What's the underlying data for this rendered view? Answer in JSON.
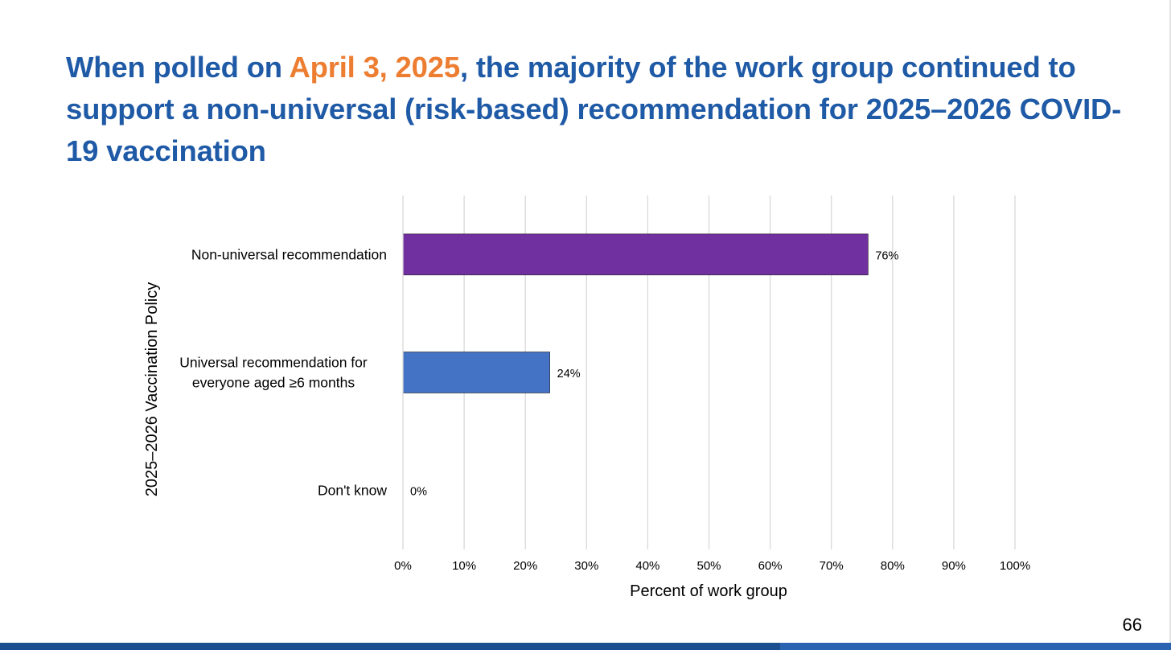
{
  "slide": {
    "title_parts": [
      "When polled on ",
      "April 3, 2025",
      ", the majority of the work group continued to support a non-universal (risk-based) recommendation for 2025–2026 COVID-19 vaccination"
    ],
    "page_number": "66",
    "colors": {
      "title": "#1f5aa6",
      "highlight": "#ed7d31",
      "footer": "#1b4f8f"
    }
  },
  "chart_data": {
    "type": "bar",
    "orientation": "horizontal",
    "categories": [
      [
        "Non-universal recommendation"
      ],
      [
        "Universal recommendation for",
        "everyone aged ≥6 months"
      ],
      [
        "Don't know"
      ]
    ],
    "values": [
      76,
      24,
      0
    ],
    "value_labels": [
      "76%",
      "24%",
      "0%"
    ],
    "bar_colors": [
      "#7030a0",
      "#4472c4",
      "#a5a5a5"
    ],
    "xlabel": "Percent of work group",
    "ylabel": "2025–2026 Vaccination Policy",
    "xlim": [
      0,
      100
    ],
    "x_ticks": [
      "0%",
      "10%",
      "20%",
      "30%",
      "40%",
      "50%",
      "60%",
      "70%",
      "80%",
      "90%",
      "100%"
    ],
    "grid": "vertical",
    "legend": "none"
  }
}
